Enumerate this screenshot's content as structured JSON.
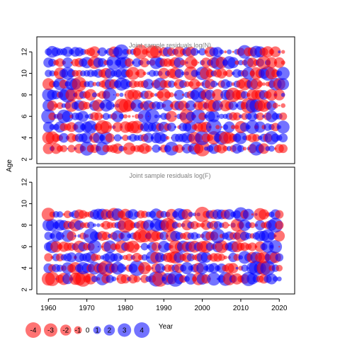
{
  "chart_data": [
    {
      "type": "scatter",
      "title": "Joint sample residuals log(N)",
      "xlabel": "",
      "ylabel": "Age",
      "xlim": [
        1957,
        2024
      ],
      "ylim": [
        1.6,
        13.4
      ],
      "x_ticks": [
        1960,
        1970,
        1980,
        1990,
        2000,
        2010,
        2020
      ],
      "y_ticks": [
        2,
        4,
        6,
        8,
        10,
        12
      ],
      "grid": false,
      "years": [
        1960,
        2021
      ],
      "ages": [
        3,
        12
      ],
      "encoding": "bubble area = |residual|, red = negative, blue = positive",
      "colors": {
        "negative": "#ff0000",
        "positive": "#0000ff"
      }
    },
    {
      "type": "scatter",
      "title": "Joint sample residuals log(F)",
      "xlabel": "Year",
      "ylabel": "",
      "xlim": [
        1957,
        2024
      ],
      "ylim": [
        1.6,
        13.4
      ],
      "x_ticks": [
        1960,
        1970,
        1980,
        1990,
        2000,
        2010,
        2020
      ],
      "y_ticks": [
        2,
        4,
        6,
        8,
        10,
        12
      ],
      "grid": false,
      "years": [
        1960,
        2020
      ],
      "ages": [
        3,
        9
      ],
      "encoding": "bubble area = |residual|, red = negative, blue = positive",
      "colors": {
        "negative": "#ff0000",
        "positive": "#0000ff"
      }
    }
  ],
  "axes": {
    "ylabel": "Age",
    "xlabel": "Year"
  },
  "legend": {
    "labels": [
      "-4",
      "-3",
      "-2",
      "-1",
      "0",
      "1",
      "2",
      "3",
      "4"
    ],
    "values": [
      -4,
      -3,
      -2,
      -1,
      0,
      1,
      2,
      3,
      4
    ],
    "placement": "bottom-left"
  }
}
